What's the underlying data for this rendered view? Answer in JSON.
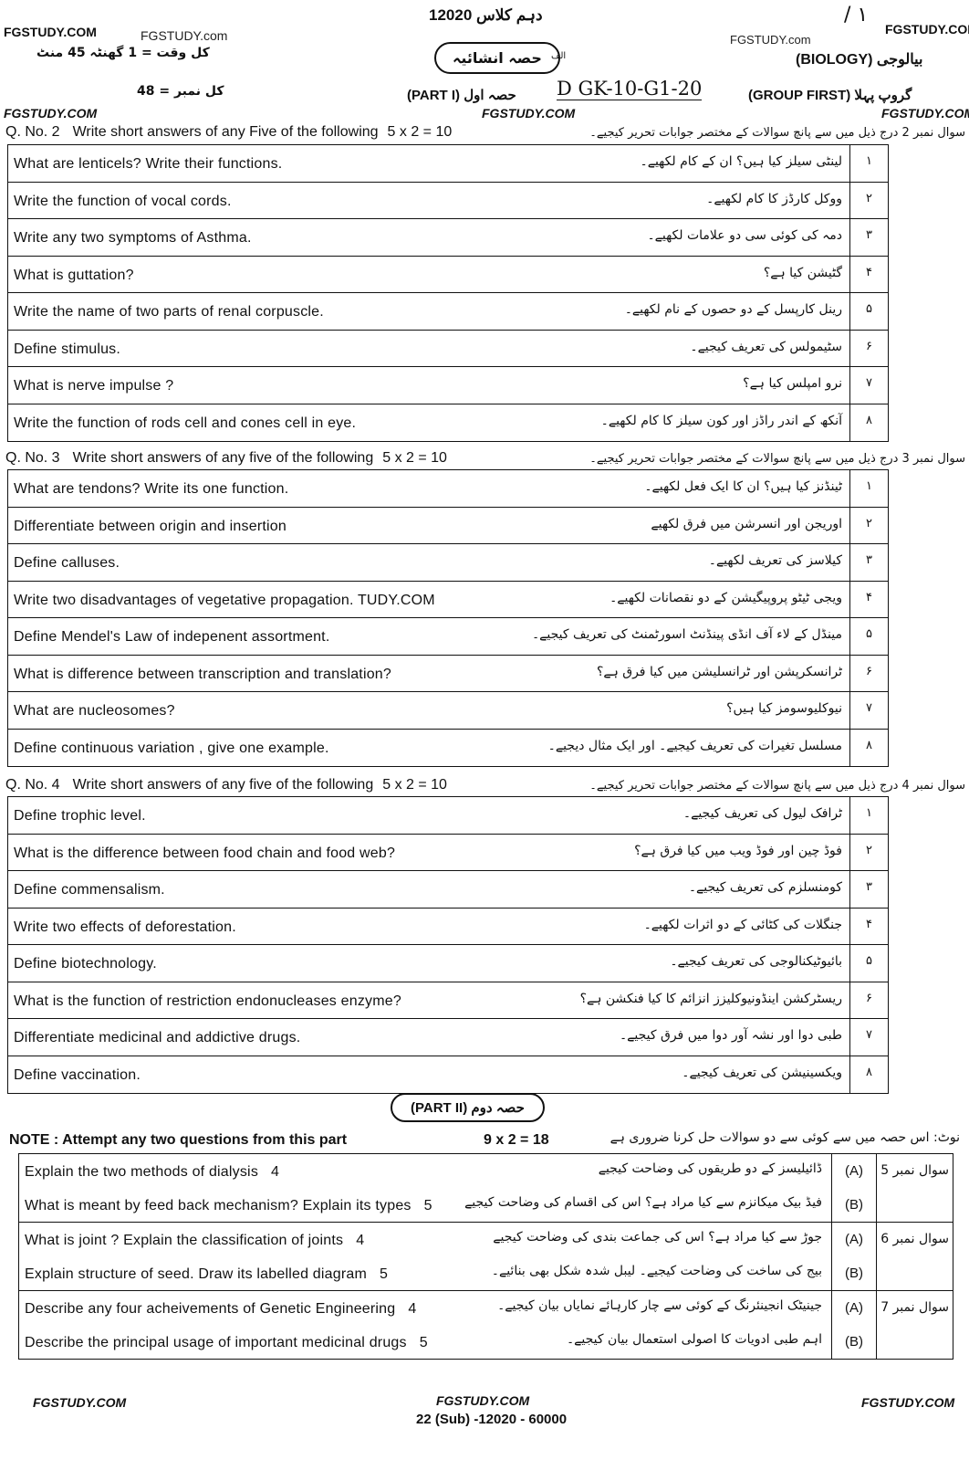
{
  "header": {
    "class_line": "12020 دہم کلاس",
    "watermarks": [
      "FGSTUDY.COM",
      "FGSTUDY.com",
      "FGSTUDY.com",
      "FGSTUDY.COM",
      "FGSTUDY.COM",
      "FGSTUDY.COM",
      "FGSTUDY.COM"
    ],
    "total_time": "کل وقت = 1 گھنٹہ 45 منٹ",
    "total_marks": "کل نمبر = 48",
    "section_title": "حصہ انشائیہ",
    "alif": "الف",
    "subject": "(BIOLOGY) بیالوجی",
    "group": "(GROUP FIRST) گروپ پہلا",
    "part": "(PART I) حصہ اول",
    "handwritten_code": "D GK-10-G1-20",
    "handwritten_marks": "/   ١"
  },
  "q2": {
    "label": "Q. No. 2",
    "instruction": "Write short answers of any Five of the following",
    "marks": "5 x 2 = 10",
    "urdu": "سوال نمبر 2 درج ذیل میں سے پانچ سوالات کے مختصر جوابات تحریر کیجیے۔",
    "items": [
      {
        "en": "What are  lenticels? Write their functions.",
        "ur": "لینٹی سیلز کیا ہیں؟ ان کے کام لکھیے۔",
        "n": "۱"
      },
      {
        "en": "Write the function of vocal  cords.",
        "ur": "ووکل کارڈز کا کام لکھیے۔",
        "n": "۲"
      },
      {
        "en": "Write any two symptoms of  Asthma.",
        "ur": "دمہ کی کوئی سی دو علامات لکھیے۔",
        "n": "۳"
      },
      {
        "en": " What is guttation?",
        "ur": "گٹیشن کیا ہے؟",
        "n": "۴"
      },
      {
        "en": "Write the name of two parts of renal corpuscle.",
        "ur": "رینل کارپسل کے دو حصوں کے نام لکھیے۔",
        "n": "۵"
      },
      {
        "en": "Define stimulus.",
        "ur": "سٹیمولس کی تعریف کیجیے۔",
        "n": "۶"
      },
      {
        "en": "What is  nerve impulse ?",
        "ur": "نرو امپلس کیا ہے؟",
        "n": "۷"
      },
      {
        "en": "Write the function of rods cell and cones cell  in eye.",
        "ur": "آنکھ کے اندر راڈز اور کون سیلز کا کام لکھیے۔",
        "n": "۸"
      }
    ]
  },
  "q3": {
    "label": "Q. No. 3",
    "instruction": "Write short answers of any five of the following",
    "marks": "5 x 2 = 10",
    "urdu": "سوال نمبر 3 درج ذیل میں سے پانچ سوالات کے مختصر جوابات تحریر کیجیے۔",
    "items": [
      {
        "en": "What are tendons? Write its one function.",
        "ur": "ٹینڈنز کیا ہیں؟ ان کا ایک فعل لکھیے۔",
        "n": "۱"
      },
      {
        "en": "Differentiate between origin and insertion",
        "ur": "اوریجن اور انسرشن میں فرق لکھیے",
        "n": "۲"
      },
      {
        "en": " Define calluses.",
        "ur": "کیلاسز کی تعریف لکھیے۔",
        "n": "۳"
      },
      {
        "en": "Write two disadvantages of vegetative propagation. TUDY.COM",
        "ur": "ویجی ٹیٹو پروپیگیشن کے دو نقصانات لکھیے۔",
        "n": "۴"
      },
      {
        "en": "Define Mendel's Law of indepenent assortment.",
        "ur": "مینڈل کے لاء آف انڈی پینڈنٹ اسورٹمنٹ کی تعریف کیجیے۔",
        "n": "۵"
      },
      {
        "en": "What is difference between transcription and translation?",
        "ur": "ٹرانسکرپشن اور ٹرانسلیشن میں کیا فرق ہے؟",
        "n": "۶"
      },
      {
        "en": "What are nucleosomes?",
        "ur": "نیوکلیوسومز کیا ہیں؟",
        "n": "۷"
      },
      {
        "en": "Define continuous variation , give one example.",
        "ur": "مسلسل تغیرات کی تعریف کیجیے۔ اور ایک مثال دیجیے۔",
        "n": "۸"
      }
    ]
  },
  "q4": {
    "label": "Q. No. 4",
    "instruction": "Write short answers of any five of the following",
    "marks": "5 x 2 = 10",
    "urdu": "سوال نمبر 4 درج ذیل میں سے پانچ سوالات کے مختصر جوابات تحریر کیجیے۔",
    "items": [
      {
        "en": "Define trophic level.",
        "ur": "ٹرافک لیول کی تعریف کیجیے۔",
        "n": "۱"
      },
      {
        "en": "What is the difference between food chain and food web?",
        "ur": "فوڈ چین اور فوڈ ویب میں کیا فرق ہے؟",
        "n": "۲"
      },
      {
        "en": "Define commensalism.",
        "ur": "کومنسلزم کی تعریف کیجیے۔",
        "n": "۳"
      },
      {
        "en": " Write two effects of deforestation.",
        "ur": "جنگلات کی کٹائی کے دو اثرات لکھیے۔",
        "n": "۴"
      },
      {
        "en": "Define biotechnology.",
        "ur": "بائیوٹیکنالوجی کی تعریف کیجیے۔",
        "n": "۵"
      },
      {
        "en": " What is the function of restriction endonucleases enzyme?",
        "ur": "ریسٹرکشن اینڈونیوکلیزز انزائم کا کیا فنکشن ہے؟",
        "n": "۶"
      },
      {
        "en": "Differentiate medicinal and addictive drugs.",
        "ur": "طبی دوا اور نشہ آور دوا میں فرق کیجیے۔",
        "n": "۷"
      },
      {
        "en": "Define vaccination.",
        "ur": "ویکسینیشن کی تعریف کیجیے۔",
        "n": "۸"
      }
    ]
  },
  "part2": {
    "title": "(PART II) حصہ دوم",
    "note": "NOTE : Attempt any two questions from this part",
    "marks": "9 x 2 = 18",
    "note_urdu": "نوٹ: اس حصہ میں سے کوئی سے دو سوالات حل کرنا ضروری ہے",
    "questions": [
      {
        "label": "سوال نمبر 5",
        "parts": [
          {
            "en": "Explain the two methods of dialysis",
            "m": "4",
            "ur": "ڈائیلیسز کے دو طریقوں کی وضاحت کیجیے",
            "l": "(A)"
          },
          {
            "en": "What is meant by feed back mechanism? Explain its types",
            "m": "5",
            "ur": "فیڈ بیک میکانزم سے کیا مراد ہے؟ اس کی اقسام کی وضاحت کیجیے",
            "l": "(B)"
          }
        ]
      },
      {
        "label": "سوال نمبر 6",
        "parts": [
          {
            "en": "What is joint ? Explain the classification of joints",
            "m": "4",
            "ur": "جوڑ سے کیا مراد ہے؟ اس کی جماعت بندی کی وضاحت کیجیے",
            "l": "(A)"
          },
          {
            "en": "Explain structure of seed. Draw its labelled diagram",
            "m": "5",
            "ur": "بیج کی ساخت کی وضاحت کیجیے۔ لیبل شدہ شکل بھی بنائیے۔",
            "l": "(B)"
          }
        ]
      },
      {
        "label": "سوال نمبر 7",
        "parts": [
          {
            "en": "Describe any four acheivements of Genetic Engineering",
            "m": "4",
            "ur": "جینیٹک انجینئرنگ کے کوئی سے چار کارہائے نمایاں بیان کیجیے۔",
            "l": "(A)"
          },
          {
            "en": "Describe the principal usage of important medicinal drugs",
            "m": "5",
            "ur": "اہم طبی ادویات کا اصولی استعمال بیان کیجیے۔",
            "l": "(B)"
          }
        ]
      }
    ]
  },
  "footer": {
    "left": "FGSTUDY.COM",
    "center": "FGSTUDY.COM",
    "right": "FGSTUDY.COM",
    "code": "22 (Sub) -12020 - 60000"
  }
}
